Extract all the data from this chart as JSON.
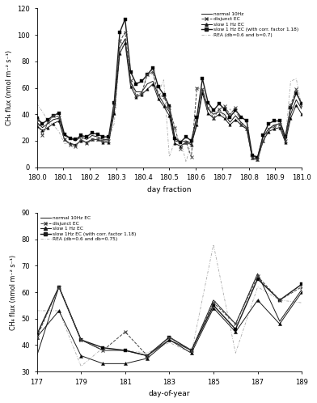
{
  "upper": {
    "xlabel": "day fraction",
    "ylabel": "CH₄ flux (nmol m⁻² s⁻¹)",
    "xlim": [
      180.0,
      181.0
    ],
    "ylim": [
      0,
      120
    ],
    "yticks": [
      0,
      20,
      40,
      60,
      80,
      100,
      120
    ],
    "xticks": [
      180.0,
      180.1,
      180.2,
      180.3,
      180.4,
      180.5,
      180.6,
      180.7,
      180.8,
      180.9,
      181.0
    ],
    "x": [
      180.0,
      180.021,
      180.042,
      180.062,
      180.083,
      180.104,
      180.125,
      180.146,
      180.167,
      180.188,
      180.208,
      180.229,
      180.25,
      180.271,
      180.292,
      180.313,
      180.333,
      180.354,
      180.375,
      180.396,
      180.417,
      180.438,
      180.458,
      180.479,
      180.5,
      180.521,
      180.542,
      180.563,
      180.583,
      180.604,
      180.625,
      180.646,
      180.667,
      180.688,
      180.708,
      180.729,
      180.75,
      180.771,
      180.792,
      180.813,
      180.833,
      180.854,
      180.875,
      180.896,
      180.917,
      180.938,
      180.958,
      180.979,
      181.0
    ],
    "normal_10hz": [
      34,
      30,
      33,
      36,
      37,
      24,
      22,
      20,
      23,
      21,
      24,
      23,
      21,
      21,
      44,
      90,
      97,
      64,
      57,
      57,
      63,
      65,
      55,
      48,
      42,
      20,
      19,
      20,
      18,
      33,
      59,
      44,
      40,
      42,
      40,
      34,
      39,
      34,
      30,
      9,
      8,
      23,
      29,
      32,
      33,
      21,
      40,
      51,
      44
    ],
    "disjunct": [
      36,
      24,
      34,
      39,
      38,
      21,
      17,
      16,
      21,
      18,
      21,
      21,
      20,
      20,
      46,
      95,
      102,
      66,
      54,
      56,
      70,
      72,
      55,
      53,
      45,
      30,
      14,
      19,
      8,
      60,
      59,
      45,
      37,
      44,
      46,
      40,
      45,
      32,
      29,
      7,
      6,
      20,
      29,
      31,
      32,
      20,
      47,
      59,
      46
    ],
    "slow_1hz": [
      31,
      28,
      30,
      33,
      35,
      21,
      18,
      17,
      20,
      19,
      21,
      21,
      19,
      19,
      41,
      86,
      94,
      61,
      53,
      55,
      59,
      63,
      52,
      46,
      39,
      18,
      16,
      19,
      17,
      32,
      56,
      41,
      37,
      40,
      37,
      32,
      36,
      32,
      29,
      7,
      6,
      20,
      27,
      29,
      30,
      19,
      37,
      47,
      40
    ],
    "slow_1hz_corr": [
      37,
      33,
      36,
      39,
      41,
      25,
      22,
      21,
      24,
      23,
      26,
      25,
      23,
      23,
      49,
      102,
      112,
      72,
      63,
      65,
      70,
      75,
      61,
      55,
      46,
      22,
      19,
      23,
      20,
      38,
      67,
      49,
      43,
      48,
      44,
      38,
      43,
      38,
      35,
      9,
      7,
      24,
      33,
      35,
      35,
      23,
      45,
      56,
      48
    ],
    "rea": [
      48,
      42,
      35,
      32,
      27,
      18,
      18,
      16,
      22,
      18,
      20,
      21,
      21,
      21,
      33,
      87,
      95,
      64,
      55,
      56,
      72,
      70,
      56,
      66,
      8,
      20,
      21,
      4,
      19,
      35,
      58,
      44,
      41,
      44,
      38,
      44,
      39,
      31,
      29,
      7,
      5,
      19,
      29,
      31,
      30,
      21,
      65,
      67,
      46
    ],
    "legend": {
      "normal_10hz": "normal 10Hz",
      "disjunct": "disjunct EC",
      "slow_1hz": "slow 1 Hz EC",
      "slow_1hz_corr": "slow 1 Hz EC (with corr. factor 1.18)",
      "rea": "REA (db=0.6 and b=0.7)"
    }
  },
  "lower": {
    "xlabel": "day-of-year",
    "ylabel": "CH₄ flux (nmol m⁻² s⁻¹)",
    "xlim": [
      177,
      189
    ],
    "ylim": [
      30,
      90
    ],
    "yticks": [
      30,
      40,
      50,
      60,
      70,
      80,
      90
    ],
    "xticks": [
      177,
      179,
      181,
      183,
      185,
      187,
      189
    ],
    "x": [
      177,
      178,
      179,
      180,
      181,
      182,
      183,
      184,
      185,
      186,
      187,
      188,
      189
    ],
    "normal_10hz": [
      36,
      62,
      42,
      38,
      38,
      36,
      42,
      38,
      57,
      48,
      67,
      49,
      61
    ],
    "disjunct": [
      43,
      62,
      42,
      38,
      45,
      36,
      43,
      38,
      56,
      48,
      66,
      57,
      62
    ],
    "slow_1hz": [
      43,
      53,
      36,
      33,
      33,
      35,
      42,
      37,
      54,
      45,
      57,
      48,
      60
    ],
    "slow_1hz_corr": [
      44,
      62,
      42,
      39,
      38,
      36,
      43,
      38,
      55,
      46,
      65,
      57,
      63
    ],
    "rea": [
      53,
      53,
      32,
      39,
      38,
      37,
      41,
      37,
      78,
      37,
      62,
      57,
      56
    ],
    "legend": {
      "normal_10hz": "normal 10Hz EC",
      "disjunct": "disjunct EC",
      "slow_1hz": "slow 1 Hz EC",
      "slow_1hz_corr": "slow 1Hz EC (with corr. factor 1.18)",
      "rea": "REA (db=0.6 and db=0.75)"
    }
  }
}
